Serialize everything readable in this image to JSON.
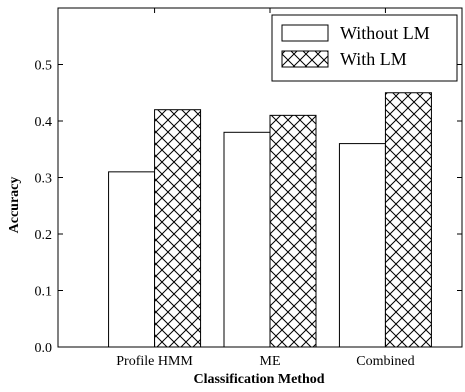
{
  "chart_data": {
    "type": "bar",
    "xlabel": "Classification Method",
    "ylabel": "Accuracy",
    "categories": [
      "Profile HMM",
      "ME",
      "Combined"
    ],
    "series": [
      {
        "name": "Without LM",
        "values": [
          0.31,
          0.38,
          0.36
        ],
        "fill": "#ffffff",
        "pattern": "none"
      },
      {
        "name": "With LM",
        "values": [
          0.42,
          0.41,
          0.45
        ],
        "fill": "#ffffff",
        "pattern": "crosshatch"
      }
    ],
    "ylim": [
      0,
      0.6
    ],
    "yticks": [
      "0.0",
      "0.1",
      "0.2",
      "0.3",
      "0.4",
      "0.5"
    ],
    "grid": false,
    "legend": "top-right",
    "colors": {
      "edge": "#000000",
      "background": "#ffffff"
    }
  }
}
